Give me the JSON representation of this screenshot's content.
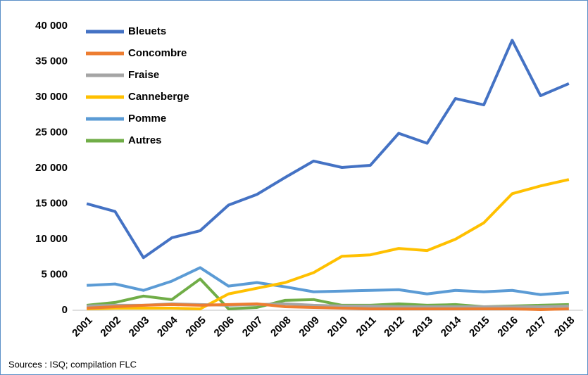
{
  "chart_data": {
    "type": "line",
    "categories": [
      "2001",
      "2002",
      "2003",
      "2004",
      "2005",
      "2006",
      "2007",
      "2008",
      "2009",
      "2010",
      "2011",
      "2012",
      "2013",
      "2014",
      "2015",
      "2016",
      "2017",
      "2018"
    ],
    "series": [
      {
        "name": "Bleuets",
        "color": "#4472c4",
        "values": [
          15000,
          13900,
          7400,
          10200,
          11200,
          14800,
          16300,
          18700,
          21000,
          20100,
          20400,
          24900,
          23500,
          29800,
          28900,
          38000,
          30200,
          31900
        ]
      },
      {
        "name": "Concombre",
        "color": "#ed7d31",
        "values": [
          300,
          500,
          700,
          800,
          700,
          800,
          900,
          500,
          400,
          300,
          200,
          200,
          200,
          200,
          200,
          200,
          100,
          200
        ]
      },
      {
        "name": "Fraise",
        "color": "#a5a5a5",
        "values": [
          600,
          700,
          700,
          900,
          800,
          700,
          800,
          900,
          700,
          600,
          600,
          500,
          500,
          500,
          500,
          500,
          500,
          600
        ]
      },
      {
        "name": "Canneberge",
        "color": "#ffc000",
        "values": [
          200,
          300,
          300,
          300,
          200,
          2300,
          3100,
          3900,
          5300,
          7600,
          7800,
          8700,
          8400,
          10000,
          12300,
          16400,
          17500,
          18400
        ]
      },
      {
        "name": "Pomme",
        "color": "#5b9bd5",
        "values": [
          3500,
          3700,
          2800,
          4100,
          6000,
          3400,
          3900,
          3300,
          2600,
          2700,
          2800,
          2900,
          2300,
          2800,
          2600,
          2800,
          2200,
          2500
        ]
      },
      {
        "name": "Autres",
        "color": "#70ad47",
        "values": [
          700,
          1100,
          2000,
          1500,
          4400,
          200,
          400,
          1400,
          1500,
          700,
          700,
          900,
          700,
          800,
          500,
          600,
          700,
          800
        ]
      }
    ],
    "ylim": [
      0,
      40000
    ],
    "yticks": [
      0,
      {
        "value": 5000,
        "label": "5 000"
      },
      {
        "value": 10000,
        "label": "10 000"
      },
      {
        "value": 15000,
        "label": "15 000"
      },
      {
        "value": 20000,
        "label": "20 000"
      },
      {
        "value": 25000,
        "label": "25 000"
      },
      {
        "value": 30000,
        "label": "30 000"
      },
      {
        "value": 35000,
        "label": "35 000"
      },
      {
        "value": 40000,
        "label": "40 000"
      }
    ],
    "grid": false,
    "legend": "top-left",
    "source": "Sources : ISQ; compilation FLC"
  }
}
